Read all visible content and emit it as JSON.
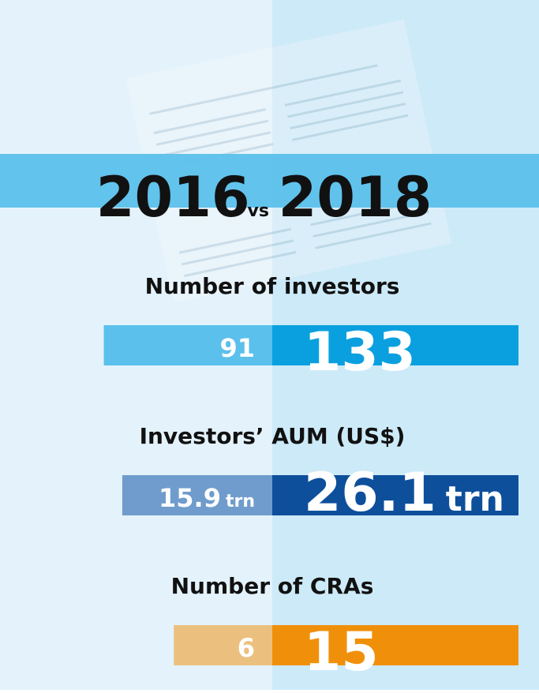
{
  "header": {
    "year_from": "2016",
    "vs": "vs",
    "year_to": "2018"
  },
  "metrics": [
    {
      "label": "Number of investors",
      "value_2016": "91",
      "value_2018": "133",
      "unit": null
    },
    {
      "label": "Investors’ AUM (US$)",
      "value_2016": "15.9",
      "value_2018": "26.1",
      "unit": "trn"
    },
    {
      "label": "Number of CRAs",
      "value_2016": "6",
      "value_2018": "15",
      "unit": null
    }
  ]
}
